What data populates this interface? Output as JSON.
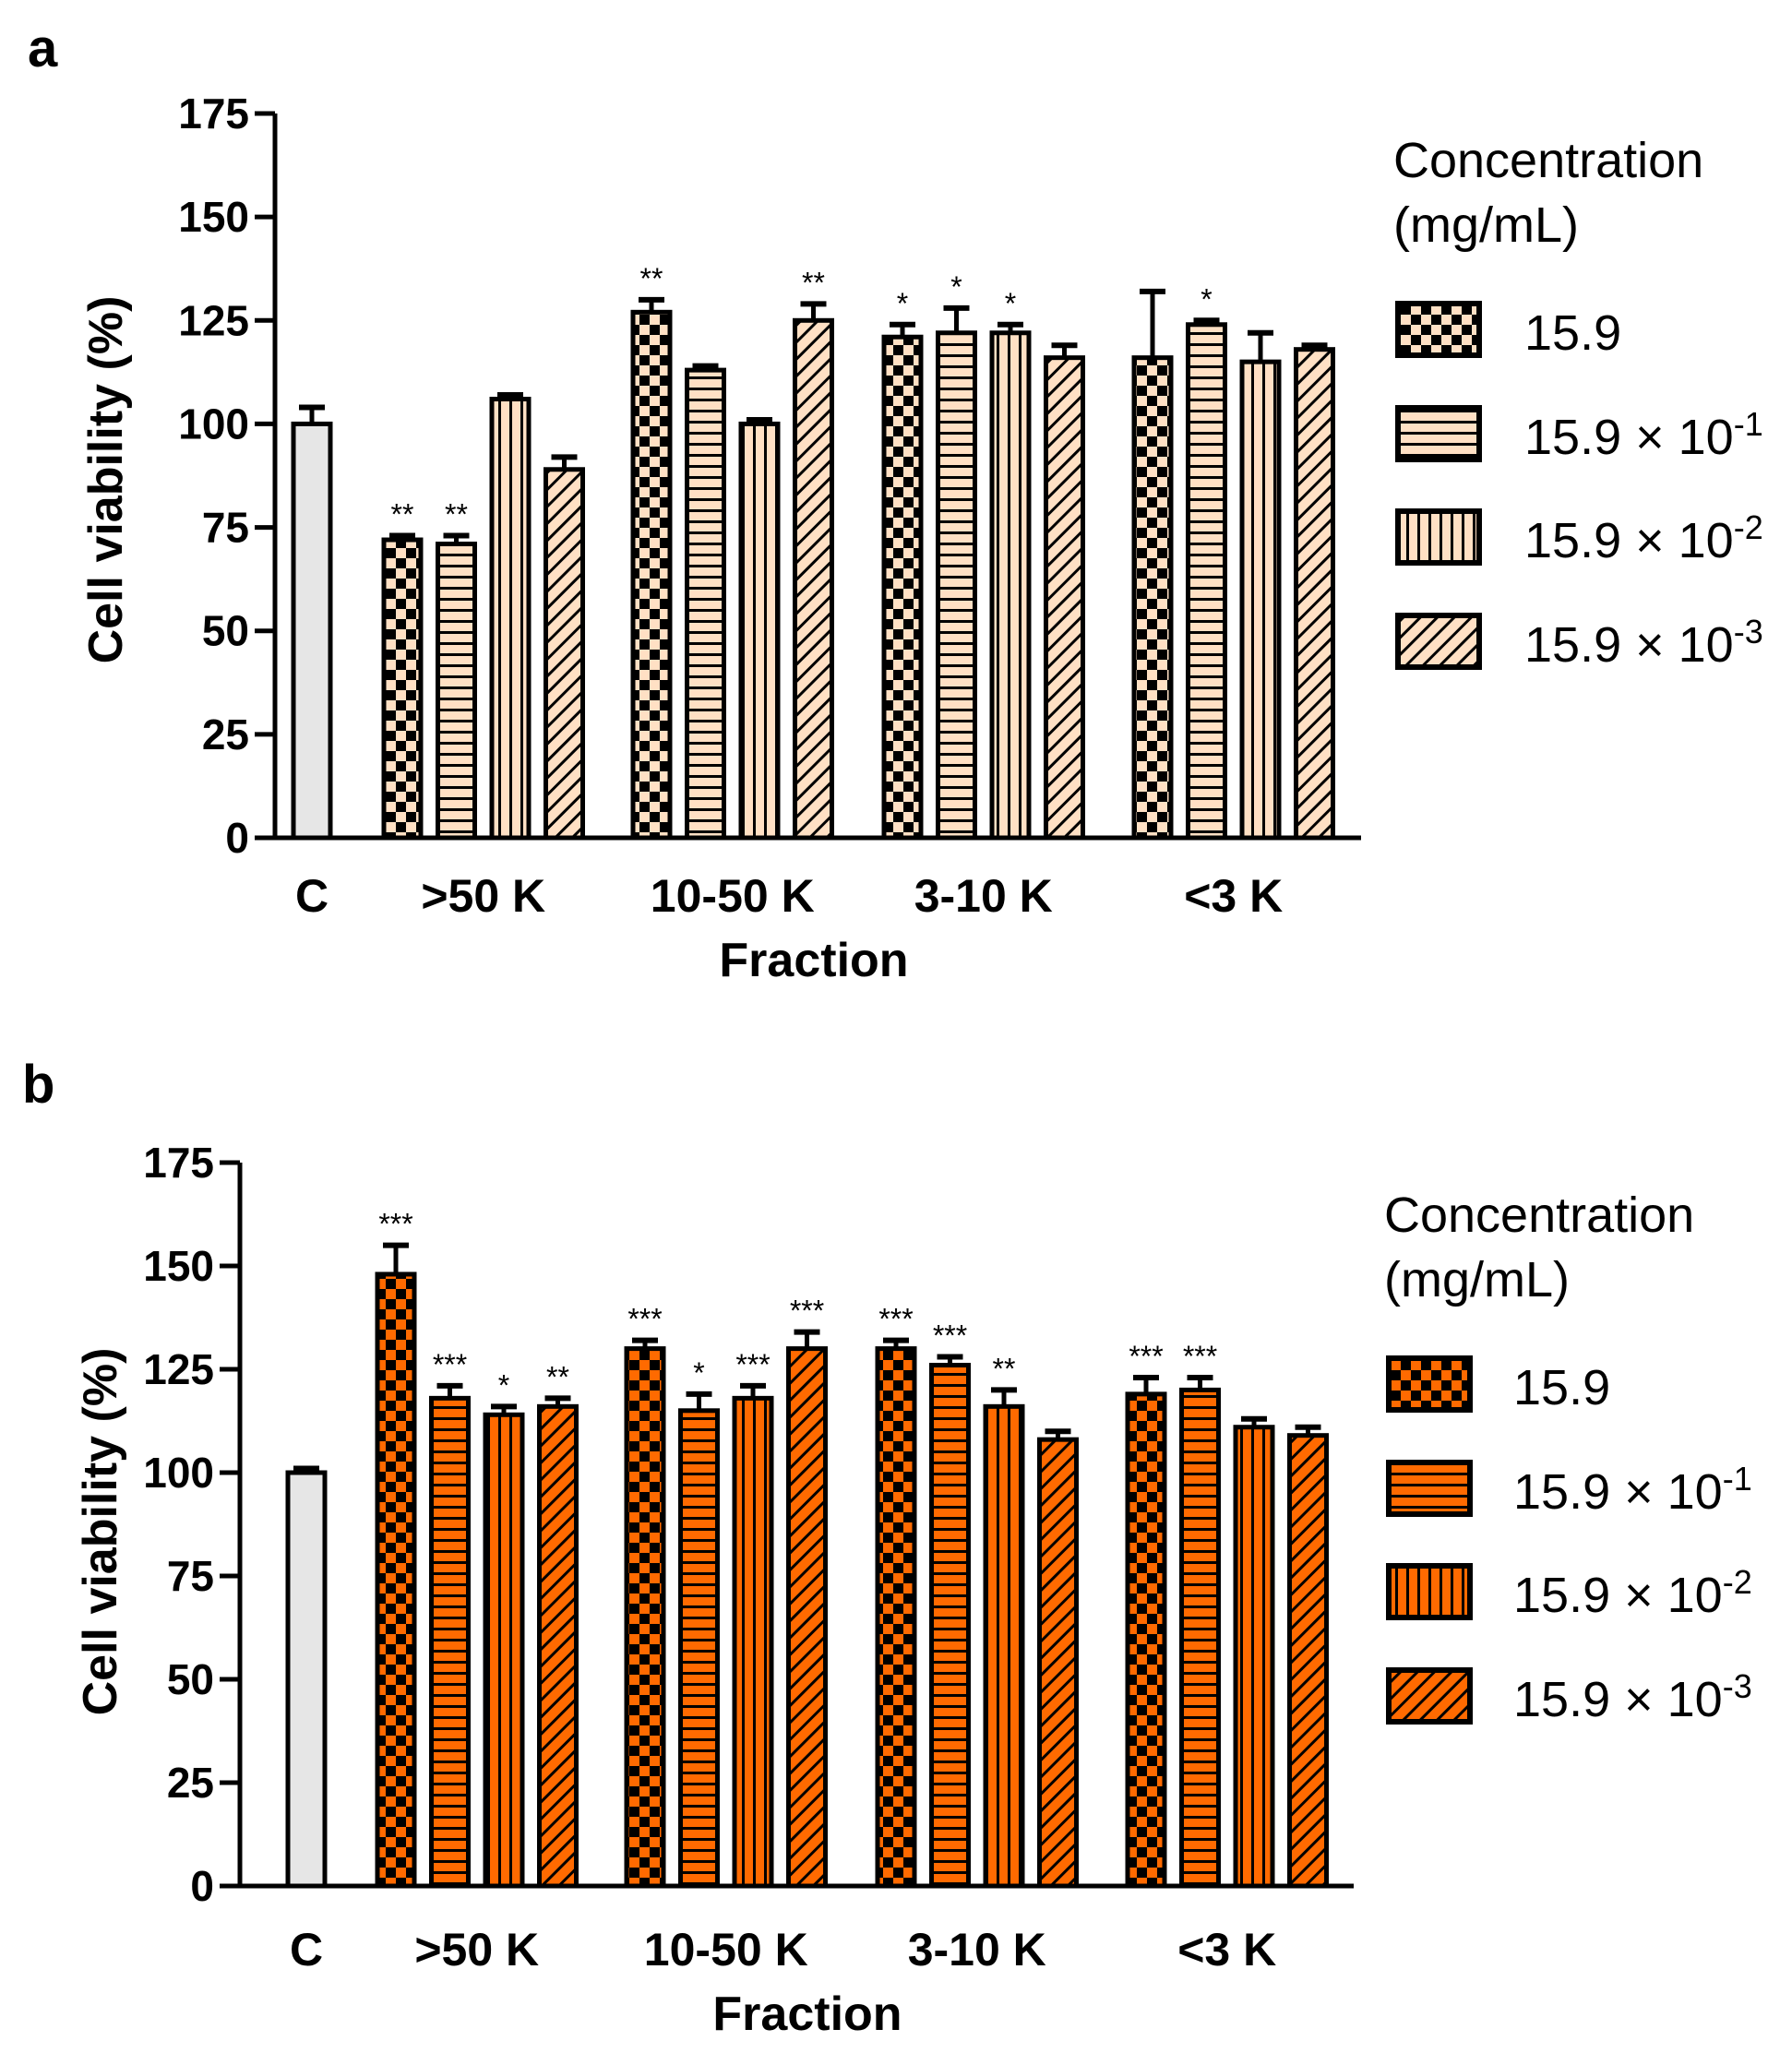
{
  "colors": {
    "control": "#e6e6e6",
    "panel_a_fill": "#ffe0c4",
    "panel_b_fill": "#ff6a00",
    "stroke": "#000000"
  },
  "legend_patterns": [
    "checker",
    "horizontal-stripes",
    "vertical-stripes",
    "diagonal-hatch"
  ],
  "chart_data": [
    {
      "panel_label": "a",
      "type": "bar",
      "title": "",
      "xlabel": "Fraction",
      "ylabel": "Cell viability (%)",
      "ylim": [
        0,
        175
      ],
      "yticks": [
        "0",
        "25",
        "50",
        "75",
        "100",
        "125",
        "150",
        "175"
      ],
      "grid": false,
      "legend_position": "right",
      "legend_title": "Concentration (mg/mL)",
      "legend_title_lines": [
        "Concentration",
        "(mg/mL)"
      ],
      "legend_entries": [
        {
          "label": "15.9",
          "exp": ""
        },
        {
          "label": "15.9 × 10",
          "exp": "-1"
        },
        {
          "label": "15.9 × 10",
          "exp": "-2"
        },
        {
          "label": "15.9 × 10",
          "exp": "-3"
        }
      ],
      "control": {
        "category": "C",
        "value": 100,
        "error": 4
      },
      "categories": [
        ">50 K",
        "10-50 K",
        "3-10 K",
        "<3 K"
      ],
      "series": [
        {
          "name": "15.9",
          "values": [
            72,
            127,
            121,
            116
          ],
          "errors": [
            1,
            3,
            3,
            16
          ],
          "significance": [
            "**",
            "**",
            "*",
            ""
          ]
        },
        {
          "name": "15.9 × 10-1",
          "values": [
            71,
            113,
            122,
            124
          ],
          "errors": [
            2,
            1,
            6,
            1
          ],
          "significance": [
            "**",
            "",
            "*",
            "*"
          ]
        },
        {
          "name": "15.9 × 10-2",
          "values": [
            106,
            100,
            122,
            115
          ],
          "errors": [
            1,
            1,
            2,
            7
          ],
          "significance": [
            "",
            "",
            "*",
            ""
          ]
        },
        {
          "name": "15.9 × 10-3",
          "values": [
            89,
            125,
            116,
            118
          ],
          "errors": [
            3,
            4,
            3,
            1
          ],
          "significance": [
            "",
            "**",
            "",
            ""
          ]
        }
      ]
    },
    {
      "panel_label": "b",
      "type": "bar",
      "title": "",
      "xlabel": "Fraction",
      "ylabel": "Cell viability (%)",
      "ylim": [
        0,
        175
      ],
      "yticks": [
        "0",
        "25",
        "50",
        "75",
        "100",
        "125",
        "150",
        "175"
      ],
      "grid": false,
      "legend_position": "right",
      "legend_title": "Concentration (mg/mL)",
      "legend_title_lines": [
        "Concentration",
        "(mg/mL)"
      ],
      "legend_entries": [
        {
          "label": "15.9",
          "exp": ""
        },
        {
          "label": "15.9 × 10",
          "exp": "-1"
        },
        {
          "label": "15.9 × 10",
          "exp": "-2"
        },
        {
          "label": "15.9 × 10",
          "exp": "-3"
        }
      ],
      "control": {
        "category": "C",
        "value": 100,
        "error": 1
      },
      "categories": [
        ">50 K",
        "10-50 K",
        "3-10 K",
        "<3 K"
      ],
      "series": [
        {
          "name": "15.9",
          "values": [
            148,
            130,
            130,
            119
          ],
          "errors": [
            7,
            2,
            2,
            4
          ],
          "significance": [
            "***",
            "***",
            "***",
            "***"
          ]
        },
        {
          "name": "15.9 × 10-1",
          "values": [
            118,
            115,
            126,
            120
          ],
          "errors": [
            3,
            4,
            2,
            3
          ],
          "significance": [
            "***",
            "*",
            "***",
            "***"
          ]
        },
        {
          "name": "15.9 × 10-2",
          "values": [
            114,
            118,
            116,
            111
          ],
          "errors": [
            2,
            3,
            4,
            2
          ],
          "significance": [
            "*",
            "***",
            "**",
            ""
          ]
        },
        {
          "name": "15.9 × 10-3",
          "values": [
            116,
            130,
            108,
            109
          ],
          "errors": [
            2,
            4,
            2,
            2
          ],
          "significance": [
            "**",
            "***",
            "",
            ""
          ]
        }
      ]
    }
  ]
}
